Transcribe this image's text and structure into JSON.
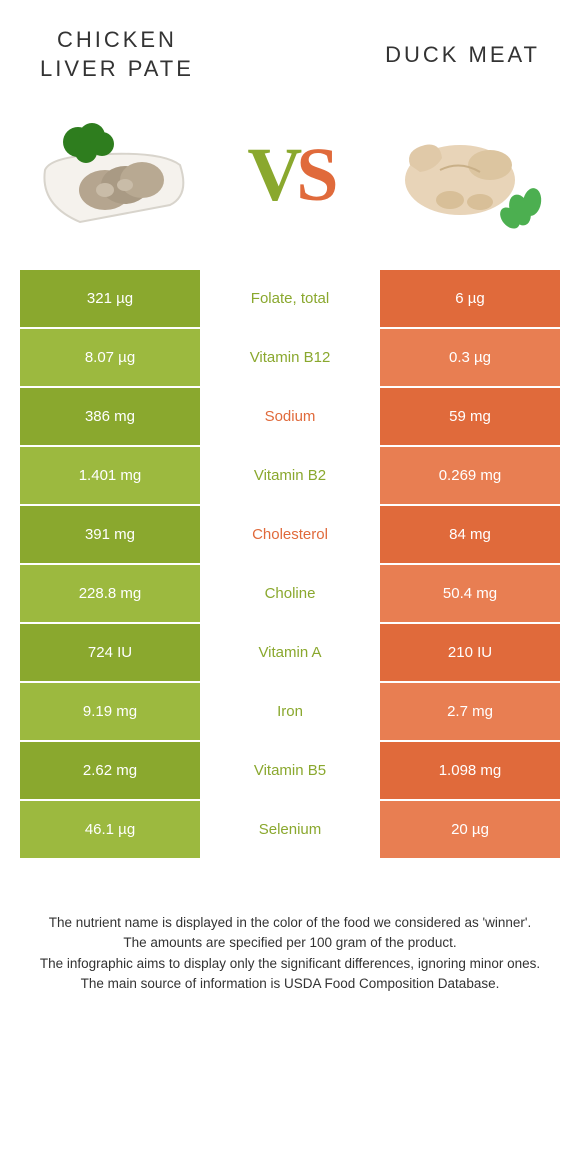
{
  "header": {
    "left_title_line1": "CHICKEN",
    "left_title_line2": "LIVER PATE",
    "right_title": "DUCK MEAT",
    "vs_v": "V",
    "vs_s": "S"
  },
  "colors": {
    "left_dark": "#8aa82e",
    "left_light": "#9cb93f",
    "right_dark": "#e06a3b",
    "right_light": "#e87e52",
    "mid_green_text": "#8aa82e",
    "mid_orange_text": "#e06a3b",
    "white": "#ffffff"
  },
  "rows": [
    {
      "left": "321 µg",
      "mid": "Folate, total",
      "right": "6 µg",
      "mid_color": "green",
      "shade": "dark"
    },
    {
      "left": "8.07 µg",
      "mid": "Vitamin B12",
      "right": "0.3 µg",
      "mid_color": "green",
      "shade": "light"
    },
    {
      "left": "386 mg",
      "mid": "Sodium",
      "right": "59 mg",
      "mid_color": "orange",
      "shade": "dark"
    },
    {
      "left": "1.401 mg",
      "mid": "Vitamin B2",
      "right": "0.269 mg",
      "mid_color": "green",
      "shade": "light"
    },
    {
      "left": "391 mg",
      "mid": "Cholesterol",
      "right": "84 mg",
      "mid_color": "orange",
      "shade": "dark"
    },
    {
      "left": "228.8 mg",
      "mid": "Choline",
      "right": "50.4 mg",
      "mid_color": "green",
      "shade": "light"
    },
    {
      "left": "724 IU",
      "mid": "Vitamin A",
      "right": "210 IU",
      "mid_color": "green",
      "shade": "dark"
    },
    {
      "left": "9.19 mg",
      "mid": "Iron",
      "right": "2.7 mg",
      "mid_color": "green",
      "shade": "light"
    },
    {
      "left": "2.62 mg",
      "mid": "Vitamin B5",
      "right": "1.098 mg",
      "mid_color": "green",
      "shade": "dark"
    },
    {
      "left": "46.1 µg",
      "mid": "Selenium",
      "right": "20 µg",
      "mid_color": "green",
      "shade": "light"
    }
  ],
  "footer": {
    "line1": "The nutrient name is displayed in the color of the food we considered as 'winner'.",
    "line2": "The amounts are specified per 100 gram of the product.",
    "line3": "The infographic aims to display only the significant differences, ignoring minor ones.",
    "line4": "The main source of information is USDA Food Composition Database."
  }
}
